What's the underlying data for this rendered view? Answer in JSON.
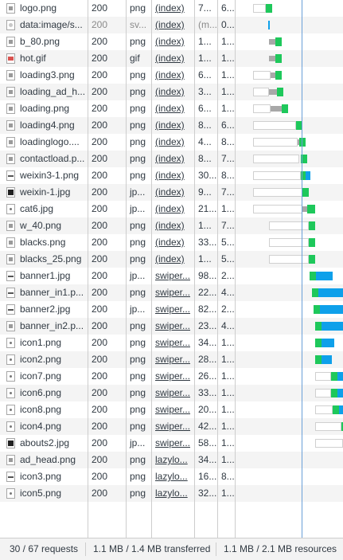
{
  "requests": [
    {
      "name": "logo.png",
      "status": "200",
      "type": "png",
      "initiator": "(index)",
      "size": "7...",
      "time": "6...",
      "icon": "image-file-icon",
      "wf": {
        "q": [
          318,
          16
        ],
        "w": [
          334,
          8
        ]
      }
    },
    {
      "name": "data:image/s...",
      "status": "200",
      "type": "sv...",
      "initiator": "(index)",
      "size": "(m...",
      "time": "0...",
      "icon": "svg-file-icon",
      "muted": true,
      "wf": {
        "tiny": [
          337,
          2
        ]
      }
    },
    {
      "name": "b_80.png",
      "status": "200",
      "type": "png",
      "initiator": "(index)",
      "size": "1...",
      "time": "1...",
      "icon": "image-file-icon",
      "wf": {
        "s": [
          338,
          8
        ],
        "w": [
          346,
          8
        ]
      }
    },
    {
      "name": "hot.gif",
      "status": "200",
      "type": "gif",
      "initiator": "(index)",
      "size": "1...",
      "time": "1...",
      "icon": "gif-file-icon",
      "wf": {
        "s": [
          338,
          8
        ],
        "w": [
          346,
          8
        ]
      }
    },
    {
      "name": "loading3.png",
      "status": "200",
      "type": "png",
      "initiator": "(index)",
      "size": "6...",
      "time": "1...",
      "icon": "image-file-icon",
      "wf": {
        "q": [
          318,
          22
        ],
        "s": [
          340,
          6
        ],
        "w": [
          346,
          8
        ]
      }
    },
    {
      "name": "loading_ad_h...",
      "status": "200",
      "type": "png",
      "initiator": "(index)",
      "size": "3...",
      "time": "1...",
      "icon": "image-file-icon",
      "wf": {
        "q": [
          318,
          20
        ],
        "s": [
          338,
          10
        ],
        "w": [
          348,
          8
        ]
      }
    },
    {
      "name": "loading.png",
      "status": "200",
      "type": "png",
      "initiator": "(index)",
      "size": "6...",
      "time": "1...",
      "icon": "image-file-icon",
      "wf": {
        "q": [
          318,
          22
        ],
        "s": [
          340,
          14
        ],
        "w": [
          354,
          8
        ]
      }
    },
    {
      "name": "loading4.png",
      "status": "200",
      "type": "png",
      "initiator": "(index)",
      "size": "8...",
      "time": "6...",
      "icon": "image-file-icon",
      "wf": {
        "q": [
          318,
          54
        ],
        "w": [
          372,
          8
        ]
      }
    },
    {
      "name": "loadinglogo....",
      "status": "200",
      "type": "png",
      "initiator": "(index)",
      "size": "4...",
      "time": "8...",
      "icon": "image-file-icon",
      "wf": {
        "q": [
          318,
          56
        ],
        "s": [
          374,
          2
        ],
        "w": [
          376,
          8
        ]
      }
    },
    {
      "name": "contactload.p...",
      "status": "200",
      "type": "png",
      "initiator": "(index)",
      "size": "8...",
      "time": "7...",
      "icon": "image-file-icon",
      "wf": {
        "q": [
          318,
          58
        ],
        "w": [
          378,
          8
        ]
      }
    },
    {
      "name": "weixin3-1.png",
      "status": "200",
      "type": "png",
      "initiator": "(index)",
      "size": "30...",
      "time": "8...",
      "icon": "wide-image-icon",
      "wf": {
        "q": [
          318,
          60
        ],
        "w": [
          378,
          6
        ],
        "d": [
          384,
          6
        ]
      }
    },
    {
      "name": "weixin-1.jpg",
      "status": "200",
      "type": "jp...",
      "initiator": "(index)",
      "size": "9...",
      "time": "7...",
      "icon": "photo-file-icon",
      "wf": {
        "q": [
          318,
          62
        ],
        "w": [
          380,
          8
        ]
      }
    },
    {
      "name": "cat6.jpg",
      "status": "200",
      "type": "jp...",
      "initiator": "(index)",
      "size": "21...",
      "time": "1...",
      "icon": "cat-image-icon",
      "wf": {
        "q": [
          318,
          62
        ],
        "s": [
          380,
          6
        ],
        "w": [
          386,
          10
        ]
      }
    },
    {
      "name": "w_40.png",
      "status": "200",
      "type": "png",
      "initiator": "(index)",
      "size": "1...",
      "time": "7...",
      "icon": "image-file-icon",
      "wf": {
        "q": [
          338,
          50
        ],
        "w": [
          388,
          8
        ]
      }
    },
    {
      "name": "blacks.png",
      "status": "200",
      "type": "png",
      "initiator": "(index)",
      "size": "33...",
      "time": "5...",
      "icon": "image-file-icon",
      "wf": {
        "q": [
          338,
          50
        ],
        "w": [
          388,
          8
        ]
      }
    },
    {
      "name": "blacks_25.png",
      "status": "200",
      "type": "png",
      "initiator": "(index)",
      "size": "1...",
      "time": "5...",
      "icon": "image-file-icon",
      "wf": {
        "q": [
          338,
          50
        ],
        "w": [
          388,
          8
        ]
      }
    },
    {
      "name": "banner1.jpg",
      "status": "200",
      "type": "jp...",
      "initiator": "swiper...",
      "size": "98...",
      "time": "2...",
      "icon": "banner-image-icon",
      "wf": {
        "w": [
          389,
          8
        ],
        "d": [
          397,
          21
        ]
      }
    },
    {
      "name": "banner_in1.p...",
      "status": "200",
      "type": "png",
      "initiator": "swiper...",
      "size": "22...",
      "time": "4...",
      "icon": "banner-image-icon",
      "wf": {
        "w": [
          392,
          8
        ],
        "d": [
          400,
          31
        ]
      }
    },
    {
      "name": "banner2.jpg",
      "status": "200",
      "type": "jp...",
      "initiator": "swiper...",
      "size": "82...",
      "time": "2...",
      "icon": "banner-image-icon",
      "wf": {
        "w": [
          394,
          8
        ],
        "d": [
          402,
          29
        ]
      }
    },
    {
      "name": "banner_in2.p...",
      "status": "200",
      "type": "png",
      "initiator": "swiper...",
      "size": "23...",
      "time": "4...",
      "icon": "image-file-icon",
      "wf": {
        "w": [
          396,
          8
        ],
        "d": [
          404,
          27
        ]
      }
    },
    {
      "name": "icon1.png",
      "status": "200",
      "type": "png",
      "initiator": "swiper...",
      "size": "34...",
      "time": "1...",
      "icon": "dot-image-icon",
      "wf": {
        "w": [
          396,
          8
        ],
        "d": [
          404,
          16
        ]
      }
    },
    {
      "name": "icon2.png",
      "status": "200",
      "type": "png",
      "initiator": "swiper...",
      "size": "28...",
      "time": "1...",
      "icon": "dot-image-icon",
      "wf": {
        "w": [
          396,
          8
        ],
        "d": [
          404,
          13
        ]
      }
    },
    {
      "name": "icon7.png",
      "status": "200",
      "type": "png",
      "initiator": "swiper...",
      "size": "26...",
      "time": "1...",
      "icon": "dot-image-icon",
      "wf": {
        "q": [
          396,
          20
        ],
        "w": [
          416,
          8
        ],
        "d": [
          424,
          7
        ]
      }
    },
    {
      "name": "icon6.png",
      "status": "200",
      "type": "png",
      "initiator": "swiper...",
      "size": "33...",
      "time": "1...",
      "icon": "dot-image-icon",
      "wf": {
        "q": [
          396,
          20
        ],
        "w": [
          416,
          8
        ],
        "d": [
          424,
          7
        ]
      }
    },
    {
      "name": "icon8.png",
      "status": "200",
      "type": "png",
      "initiator": "swiper...",
      "size": "20...",
      "time": "1...",
      "icon": "dot-image-icon",
      "wf": {
        "q": [
          396,
          22
        ],
        "w": [
          418,
          8
        ],
        "d": [
          426,
          5
        ]
      }
    },
    {
      "name": "icon4.png",
      "status": "200",
      "type": "png",
      "initiator": "swiper...",
      "size": "42...",
      "time": "1...",
      "icon": "dot-image-icon",
      "wf": {
        "q": [
          396,
          33
        ],
        "w": [
          429,
          2
        ]
      }
    },
    {
      "name": "abouts2.jpg",
      "status": "200",
      "type": "jp...",
      "initiator": "swiper...",
      "size": "58...",
      "time": "1...",
      "icon": "dark-image-icon",
      "wf": {
        "q": [
          396,
          35
        ]
      }
    },
    {
      "name": "ad_head.png",
      "status": "200",
      "type": "png",
      "initiator": "lazylo...",
      "size": "34...",
      "time": "1...",
      "icon": "image-file-icon",
      "wf": {}
    },
    {
      "name": "icon3.png",
      "status": "200",
      "type": "png",
      "initiator": "lazylo...",
      "size": "16...",
      "time": "8...",
      "icon": "wide-image-icon",
      "wf": {}
    },
    {
      "name": "icon5.png",
      "status": "200",
      "type": "png",
      "initiator": "lazylo...",
      "size": "32...",
      "time": "1...",
      "icon": "dot-image-icon",
      "wf": {}
    }
  ],
  "status_bar": {
    "requests": "30 / 67 requests",
    "transferred": "1.1 MB / 1.4 MB transferred",
    "resources": "1.1 MB / 2.1 MB resources"
  },
  "colors": {
    "waiting": "#1ec85b",
    "download": "#0ea0ea",
    "stalled": "#a8a8a8",
    "timeline_marker": "#6a9fd8"
  }
}
